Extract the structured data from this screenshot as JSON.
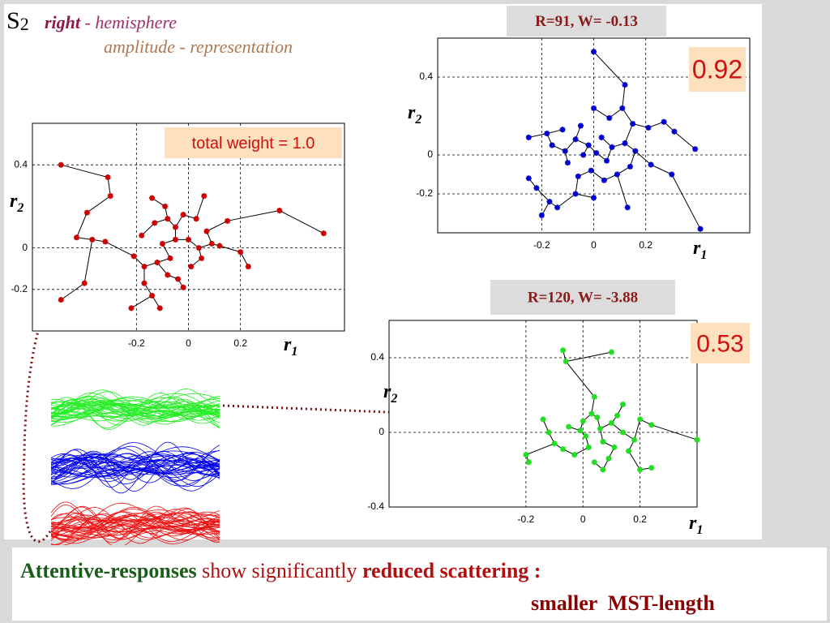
{
  "slide": {
    "symbol": {
      "base": "S",
      "sub": "2"
    },
    "subtitle_right": "right",
    "subtitle_hemi": "- hemisphere",
    "subtitle_repr": "amplitude - representation",
    "footer": {
      "part1": "Attentive-responses",
      "part2": "show significantly",
      "part3": "reduced scattering :",
      "part4": "smaller  MST-length"
    }
  },
  "chart_data": [
    {
      "type": "scatter",
      "annotation": "total weight = 1.0",
      "color": "#cc0000",
      "xlabel": {
        "base": "r",
        "sub": "1"
      },
      "ylabel": {
        "base": "r",
        "sub": "2"
      },
      "xlim": [
        -0.6,
        0.6
      ],
      "ylim": [
        -0.4,
        0.6
      ],
      "xticks": [
        -0.2,
        0,
        0.2
      ],
      "yticks": [
        0.4,
        0,
        -0.2
      ],
      "grid": true,
      "x": [
        -0.49,
        -0.31,
        -0.3,
        -0.39,
        -0.43,
        -0.37,
        -0.32,
        -0.4,
        -0.49,
        0.35,
        0.52,
        0.15,
        -0.22,
        -0.11,
        0.23,
        -0.14,
        0.06,
        -0.21,
        -0.18,
        -0.13,
        -0.08,
        -0.05,
        -0.02,
        0.03,
        0.07,
        0.09,
        0.05,
        0.01,
        -0.04,
        -0.08,
        -0.12,
        -0.17,
        -0.1,
        -0.05,
        0.0,
        0.04,
        -0.07,
        0.12,
        0.2,
        -0.02,
        -0.17,
        -0.14,
        -0.09
      ],
      "y": [
        0.4,
        0.34,
        0.25,
        0.17,
        0.05,
        0.04,
        0.03,
        -0.17,
        -0.25,
        0.18,
        0.07,
        0.13,
        -0.29,
        -0.29,
        -0.09,
        0.24,
        0.25,
        -0.04,
        0.06,
        0.12,
        0.14,
        0.1,
        0.16,
        0.14,
        0.08,
        0.02,
        -0.05,
        -0.09,
        -0.15,
        -0.13,
        -0.07,
        -0.09,
        0.02,
        0.04,
        0.04,
        0.0,
        -0.05,
        0.01,
        -0.02,
        -0.19,
        -0.17,
        -0.23,
        0.2
      ]
    },
    {
      "type": "scatter",
      "title": "R=91, W= -0.13",
      "annotation": "0.92",
      "color": "#0000cc",
      "xlabel": {
        "base": "r",
        "sub": "1"
      },
      "ylabel": {
        "base": "r",
        "sub": "2"
      },
      "xlim": [
        -0.6,
        0.6
      ],
      "ylim": [
        -0.4,
        0.6
      ],
      "xticks": [
        -0.2,
        0,
        0.2
      ],
      "yticks": [
        0.4,
        0,
        -0.2
      ],
      "grid": true,
      "x": [
        0.0,
        0.12,
        0.11,
        -0.25,
        -0.18,
        -0.25,
        -0.22,
        -0.2,
        -0.14,
        -0.17,
        0.13,
        0.41,
        0.39,
        0.31,
        0.27,
        0.21,
        0.3,
        0.22,
        0.0,
        -0.05,
        -0.12,
        -0.16,
        -0.11,
        -0.07,
        -0.02,
        0.03,
        0.07,
        0.12,
        0.16,
        0.14,
        0.09,
        0.04,
        -0.01,
        -0.06,
        -0.1,
        -0.04,
        0.01,
        0.05,
        0.0,
        -0.07,
        0.06,
        0.15
      ],
      "y": [
        0.53,
        0.36,
        0.24,
        0.09,
        0.11,
        -0.12,
        -0.17,
        -0.31,
        -0.27,
        -0.24,
        -0.27,
        -0.38,
        0.03,
        0.12,
        0.17,
        0.14,
        -0.1,
        -0.05,
        0.24,
        0.15,
        0.13,
        0.05,
        0.02,
        0.08,
        0.05,
        0.09,
        0.04,
        0.06,
        0.02,
        -0.06,
        -0.1,
        -0.13,
        -0.08,
        -0.11,
        -0.04,
        0.0,
        0.01,
        -0.03,
        -0.22,
        -0.2,
        0.19,
        0.16
      ]
    },
    {
      "type": "scatter",
      "title": "R=120, W= -3.88",
      "annotation": "0.53",
      "color": "#22dd22",
      "xlabel": {
        "base": "r",
        "sub": "1"
      },
      "ylabel": {
        "base": "r",
        "sub": "2"
      },
      "xlim": [
        -0.68,
        0.4
      ],
      "ylim": [
        -0.4,
        0.6
      ],
      "xticks": [
        -0.2,
        0,
        0.2
      ],
      "yticks": [
        0.4,
        0,
        -0.4
      ],
      "grid": true,
      "x": [
        -0.07,
        0.1,
        -0.06,
        0.04,
        0.14,
        -0.2,
        -0.19,
        0.2,
        0.24,
        0.4,
        -0.14,
        0.07,
        -0.1,
        -0.05,
        0.0,
        0.03,
        0.06,
        0.1,
        0.14,
        0.18,
        0.16,
        0.11,
        0.07,
        0.02,
        -0.03,
        -0.07,
        0.01,
        0.05,
        0.12,
        0.24,
        -0.12,
        0.09,
        0.2,
        0.04,
        -0.01
      ],
      "y": [
        0.44,
        0.43,
        0.38,
        0.19,
        0.15,
        -0.12,
        -0.16,
        -0.2,
        -0.19,
        -0.04,
        0.07,
        -0.2,
        -0.06,
        0.03,
        0.06,
        0.1,
        0.02,
        0.05,
        0.0,
        -0.04,
        -0.1,
        -0.08,
        -0.05,
        -0.08,
        -0.12,
        -0.09,
        -0.02,
        0.08,
        0.09,
        0.04,
        0.0,
        -0.14,
        0.07,
        -0.16,
        0.01
      ]
    }
  ]
}
